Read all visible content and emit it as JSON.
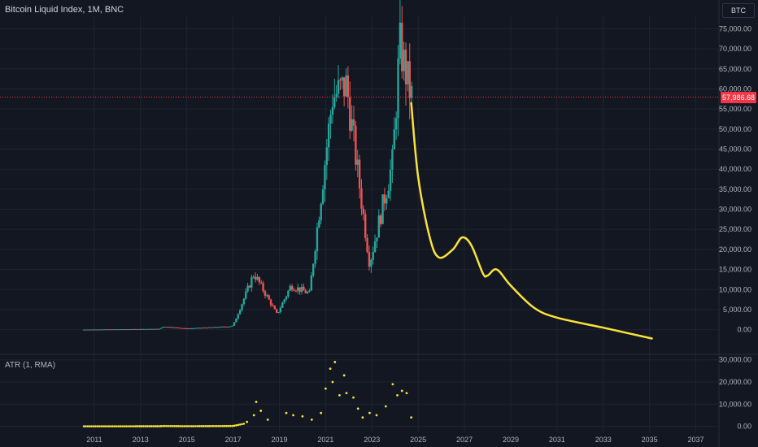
{
  "header": {
    "title": "Bitcoin Liquid Index, 1M, BNC",
    "currency": "BTC"
  },
  "atr": {
    "label": "ATR (1, RMA)"
  },
  "last_price_label": "57,986.68",
  "colors": {
    "background": "#131722",
    "grid": "#1f2331",
    "up": "#26a69a",
    "down": "#ef5350",
    "projection": "#f9e33a",
    "price_line": "#f23645"
  },
  "chart_data": [
    {
      "type": "candlestick",
      "title": "Bitcoin Liquid Index, 1M, BNC",
      "x_ticks": [
        "2011",
        "2013",
        "2015",
        "2017",
        "2019",
        "2021",
        "2023",
        "2025",
        "2027",
        "2029",
        "2031",
        "2033",
        "2035",
        "2037"
      ],
      "y_ticks": [
        "0.00",
        "5,000.00",
        "10,000.00",
        "15,000.00",
        "20,000.00",
        "25,000.00",
        "30,000.00",
        "35,000.00",
        "40,000.00",
        "45,000.00",
        "50,000.00",
        "55,000.00",
        "60,000.00",
        "65,000.00",
        "70,000.00",
        "75,000.00"
      ],
      "ylim": [
        -2500,
        76500
      ],
      "last_price": 57986.68,
      "candles_yearly_approx": [
        {
          "x": 2017.0,
          "close": 1000
        },
        {
          "x": 2017.9,
          "close": 14000
        },
        {
          "x": 2018.9,
          "close": 3800
        },
        {
          "x": 2019.5,
          "close": 11000
        },
        {
          "x": 2020.3,
          "close": 9000
        },
        {
          "x": 2021.3,
          "close": 58000
        },
        {
          "x": 2021.9,
          "close": 61000
        },
        {
          "x": 2022.9,
          "close": 16500
        },
        {
          "x": 2023.9,
          "close": 42000
        },
        {
          "x": 2024.2,
          "close": 71000
        },
        {
          "x": 2024.7,
          "close": 58000
        }
      ],
      "projection": [
        {
          "x": 2024.7,
          "y": 56500
        },
        {
          "x": 2025.0,
          "y": 38000
        },
        {
          "x": 2025.5,
          "y": 23000
        },
        {
          "x": 2025.9,
          "y": 18000
        },
        {
          "x": 2026.5,
          "y": 20000
        },
        {
          "x": 2026.9,
          "y": 23000
        },
        {
          "x": 2027.3,
          "y": 21000
        },
        {
          "x": 2027.8,
          "y": 14000
        },
        {
          "x": 2028.0,
          "y": 13500
        },
        {
          "x": 2028.4,
          "y": 15000
        },
        {
          "x": 2029.0,
          "y": 11000
        },
        {
          "x": 2030.0,
          "y": 5500
        },
        {
          "x": 2031.0,
          "y": 3000
        },
        {
          "x": 2033.0,
          "y": 500
        },
        {
          "x": 2035.1,
          "y": -2200
        }
      ]
    },
    {
      "type": "scatter",
      "title": "ATR (1, RMA)",
      "y_ticks": [
        "0.00",
        "10,000.00",
        "20,000.00",
        "30,000.00"
      ],
      "ylim": [
        -2000,
        31000
      ],
      "points": [
        {
          "x": 2017.6,
          "y": 2000
        },
        {
          "x": 2017.9,
          "y": 5000
        },
        {
          "x": 2018.0,
          "y": 11000
        },
        {
          "x": 2018.2,
          "y": 7000
        },
        {
          "x": 2018.5,
          "y": 3000
        },
        {
          "x": 2019.3,
          "y": 6000
        },
        {
          "x": 2019.6,
          "y": 5000
        },
        {
          "x": 2020.0,
          "y": 4500
        },
        {
          "x": 2020.4,
          "y": 3000
        },
        {
          "x": 2020.8,
          "y": 6000
        },
        {
          "x": 2021.0,
          "y": 17000
        },
        {
          "x": 2021.2,
          "y": 26000
        },
        {
          "x": 2021.3,
          "y": 20000
        },
        {
          "x": 2021.4,
          "y": 29000
        },
        {
          "x": 2021.6,
          "y": 14000
        },
        {
          "x": 2021.8,
          "y": 23000
        },
        {
          "x": 2021.9,
          "y": 15000
        },
        {
          "x": 2022.2,
          "y": 13000
        },
        {
          "x": 2022.4,
          "y": 8000
        },
        {
          "x": 2022.6,
          "y": 4000
        },
        {
          "x": 2022.9,
          "y": 6000
        },
        {
          "x": 2023.2,
          "y": 5000
        },
        {
          "x": 2023.6,
          "y": 9000
        },
        {
          "x": 2023.9,
          "y": 19000
        },
        {
          "x": 2024.1,
          "y": 14000
        },
        {
          "x": 2024.3,
          "y": 16000
        },
        {
          "x": 2024.5,
          "y": 15000
        },
        {
          "x": 2024.7,
          "y": 4000
        }
      ]
    }
  ]
}
